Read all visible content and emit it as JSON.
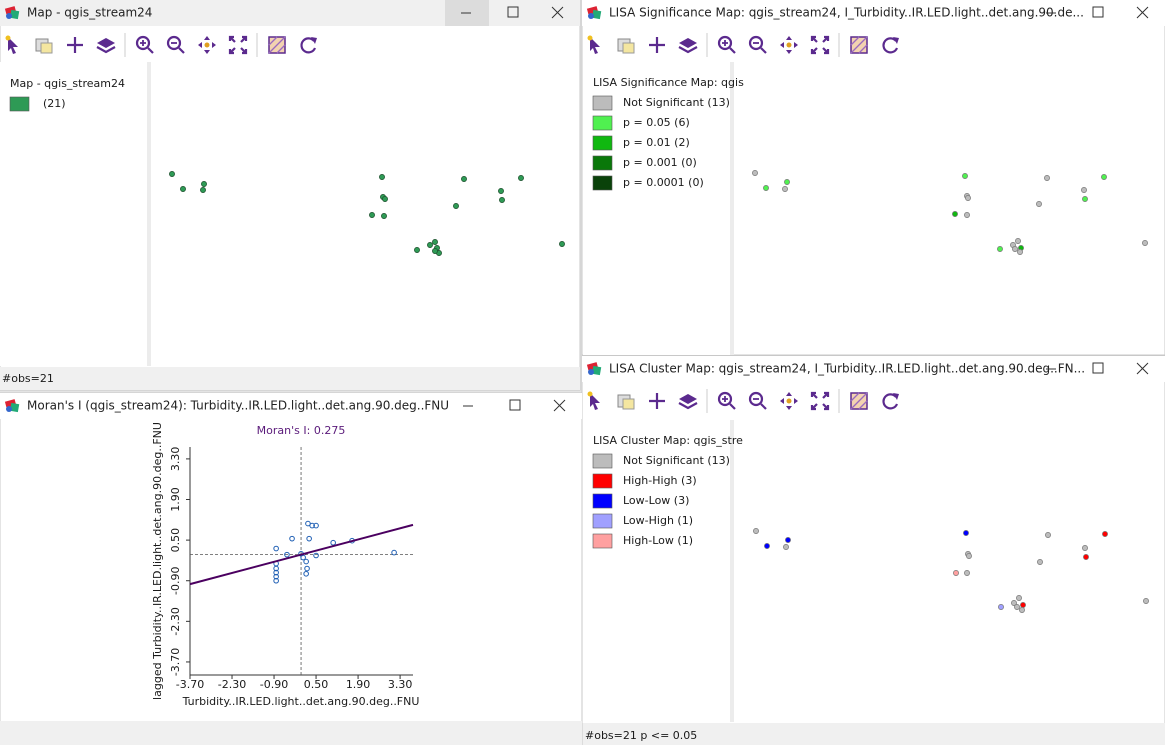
{
  "windows": {
    "map_window": {
      "title": "Map - qgis_stream24",
      "legend": {
        "title": "Map - qgis_stream24",
        "items": [
          {
            "label": "(21)",
            "color": "#2e9a55"
          }
        ]
      },
      "status": "#obs=21"
    },
    "significance_window": {
      "title": "LISA Significance Map: qgis_stream24, I_Turbidity..IR.LED.light..det.ang.90.de...",
      "legend": {
        "title": "LISA Significance Map: qgis",
        "items": [
          {
            "label": "Not Significant (13)",
            "color": "#bcbcbc"
          },
          {
            "label": "p = 0.05 (6)",
            "color": "#50f050"
          },
          {
            "label": "p = 0.01 (2)",
            "color": "#10b810"
          },
          {
            "label": "p = 0.001 (0)",
            "color": "#0a780a"
          },
          {
            "label": "p = 0.0001 (0)",
            "color": "#0a420a"
          }
        ]
      }
    },
    "moran_window": {
      "title": "Moran's I (qgis_stream24): Turbidity..IR.LED.light..det.ang.90.deg..FNU"
    },
    "cluster_window": {
      "title": "LISA Cluster Map: qgis_stream24, I_Turbidity..IR.LED.light..det.ang.90.deg..FN...",
      "legend": {
        "title": "LISA Cluster Map: qgis_stre",
        "items": [
          {
            "label": "Not Significant (13)",
            "color": "#bcbcbc"
          },
          {
            "label": "High-High (3)",
            "color": "#ff0000"
          },
          {
            "label": "Low-Low (3)",
            "color": "#0000ff"
          },
          {
            "label": "Low-High (1)",
            "color": "#a0a0ff"
          },
          {
            "label": "High-Low (1)",
            "color": "#ffa0a0"
          }
        ]
      },
      "status": "#obs=21  p <= 0.05"
    }
  },
  "chart_data": {
    "type": "scatter",
    "title": "Moran's I: 0.275",
    "morans_i": 0.275,
    "x_label": "Turbidity..IR.LED.light..det.ang.90.deg..FNU",
    "y_label": "lagged Turbidity..IR.LED.light..det.ang.90.deg..FNU",
    "x": [
      -0.83,
      -0.83,
      -0.83,
      -0.83,
      -0.83,
      -0.83,
      -0.47,
      -0.3,
      0.07,
      0.17,
      0.2,
      0.17,
      0.23,
      0.37,
      0.5,
      0.27,
      0.5,
      1.07,
      1.7,
      3.1,
      0.0
    ],
    "y": [
      0.21,
      -0.31,
      -0.48,
      -0.62,
      -0.76,
      -0.9,
      0.0,
      0.55,
      -0.1,
      -0.24,
      -0.48,
      -0.66,
      1.07,
      1.0,
      1.0,
      0.55,
      -0.03,
      0.41,
      0.48,
      0.07,
      0.03
    ],
    "point_color": "#1f5fb4",
    "line_color": "#4b0060",
    "xlim": [
      -3.7,
      3.73
    ],
    "ylim": [
      -4.15,
      3.71
    ],
    "xticks": [
      {
        "value": -3.7,
        "label": "-3.70"
      },
      {
        "value": -2.3,
        "label": "-2.30"
      },
      {
        "value": -0.9,
        "label": "-0.90"
      },
      {
        "value": 0.5,
        "label": "0.50"
      },
      {
        "value": 1.9,
        "label": "1.90"
      },
      {
        "value": 3.3,
        "label": "3.30"
      }
    ],
    "yticks": [
      {
        "value": -3.7,
        "label": "-3.70"
      },
      {
        "value": -2.3,
        "label": "-2.30"
      },
      {
        "value": -0.9,
        "label": "-0.90"
      },
      {
        "value": 0.5,
        "label": "0.50"
      },
      {
        "value": 1.9,
        "label": "1.90"
      },
      {
        "value": 3.3,
        "label": "3.30"
      }
    ]
  }
}
